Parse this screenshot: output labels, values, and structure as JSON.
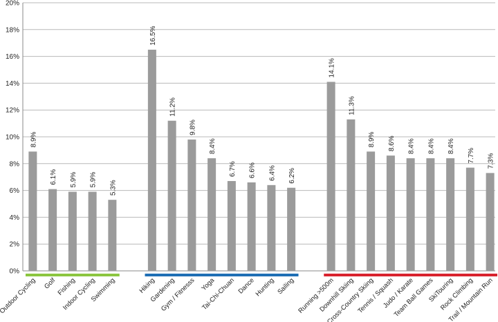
{
  "chart_data": {
    "type": "bar",
    "title": "",
    "xlabel": "",
    "ylabel": "",
    "ylim": [
      0,
      20
    ],
    "yticks": [
      "0%",
      "2%",
      "4%",
      "6%",
      "8%",
      "10%",
      "12%",
      "14%",
      "16%",
      "18%",
      "20%"
    ],
    "grid": true,
    "groups": [
      {
        "color": "#8cc63f",
        "categories": [
          "Outdoor Cycling",
          "Golf",
          "Fishing",
          "Indoor Cycling",
          "Swimming"
        ],
        "values": [
          8.9,
          6.1,
          5.9,
          5.9,
          5.3
        ],
        "labels": [
          "8.9%",
          "6.1%",
          "5.9%",
          "5.9%",
          "5.3%"
        ]
      },
      {
        "color": "#1f6fb5",
        "categories": [
          "Hiking",
          "Gardening",
          "Gym / Fitnesss",
          "Yoga",
          "Tai-Chi-Chuan",
          "Dance",
          "Hunting",
          "Sailing"
        ],
        "values": [
          16.5,
          11.2,
          9.8,
          8.4,
          6.7,
          6.6,
          6.4,
          6.2
        ],
        "labels": [
          "16.5%",
          "11.2%",
          "9.8%",
          "8.4%",
          "6.7%",
          "6.6%",
          "6.4%",
          "6.2%"
        ]
      },
      {
        "color": "#d9232e",
        "categories": [
          "Running >500m",
          "Downhill Skiing",
          "Cross-Country Skiing",
          "Tennis / Squash",
          "Judo / Karate",
          "Team Ball Games",
          "SkiTouring",
          "Rock Climbing",
          "Trail / Mountain Run"
        ],
        "values": [
          14.1,
          11.3,
          8.9,
          8.6,
          8.4,
          8.4,
          8.4,
          7.7,
          7.3
        ],
        "labels": [
          "14.1%",
          "11.3%",
          "8.9%",
          "8.6%",
          "8.4%",
          "8.4%",
          "8.4%",
          "7.7%",
          "7.3%"
        ]
      }
    ]
  }
}
